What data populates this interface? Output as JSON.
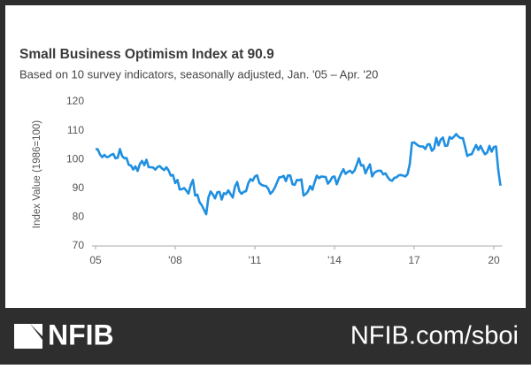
{
  "chart_data": {
    "type": "line",
    "title": "Small Business Optimism Index at 90.9",
    "subtitle": "Based on 10 survey indicators, seasonally adjusted, Jan. '05 – Apr. '20",
    "y_label": "Index Value (1986=100)",
    "color": "#1f8fe0",
    "x": [
      0,
      1,
      2,
      3,
      4,
      5,
      6,
      7,
      8,
      9,
      10,
      11,
      12,
      13,
      14,
      15,
      16,
      17,
      18,
      19,
      20,
      21,
      22,
      23,
      24,
      25,
      26,
      27,
      28,
      29,
      30,
      31,
      32,
      33,
      34,
      35,
      36,
      37,
      38,
      39,
      40,
      41,
      42,
      43,
      44,
      45,
      46,
      47,
      48,
      49,
      50,
      51,
      52,
      53,
      54,
      55,
      56,
      57,
      58,
      59,
      60,
      61,
      62,
      63,
      64,
      65,
      66,
      67,
      68,
      69,
      70,
      71,
      72,
      73,
      74,
      75,
      76,
      77,
      78,
      79,
      80,
      81,
      82,
      83,
      84,
      85,
      86,
      87,
      88,
      89,
      90,
      91,
      92,
      93,
      94,
      95,
      96,
      97,
      98,
      99,
      100,
      101,
      102,
      103,
      104,
      105,
      106,
      107,
      108,
      109,
      110,
      111,
      112,
      113,
      114,
      115,
      116,
      117,
      118,
      119,
      120,
      121,
      122,
      123,
      124,
      125,
      126,
      127,
      128,
      129,
      130,
      131,
      132,
      133,
      134,
      135,
      136,
      137,
      138,
      139,
      140,
      141,
      142,
      143,
      144,
      145,
      146,
      147,
      148,
      149,
      150,
      151,
      152,
      153,
      154,
      155,
      156,
      157,
      158,
      159,
      160,
      161,
      162,
      163,
      164,
      165,
      166,
      167,
      168,
      169,
      170,
      171,
      172,
      173,
      174,
      175,
      176,
      177,
      178,
      179,
      180,
      181,
      182,
      183
    ],
    "values": [
      103.6,
      103.5,
      101.7,
      100.8,
      101.6,
      100.8,
      101.0,
      101.6,
      101.9,
      100.4,
      100.6,
      103.6,
      101.2,
      100.4,
      100.5,
      98.1,
      97.9,
      96.5,
      97.6,
      96.0,
      98.4,
      99.5,
      98.0,
      99.9,
      97.3,
      97.3,
      97.2,
      96.5,
      97.4,
      97.7,
      96.9,
      96.3,
      97.3,
      96.2,
      94.4,
      94.6,
      91.8,
      92.9,
      89.6,
      89.7,
      90.1,
      89.2,
      88.2,
      91.1,
      92.9,
      87.5,
      87.8,
      85.2,
      84.1,
      82.6,
      81.0,
      86.8,
      88.9,
      87.9,
      86.5,
      88.6,
      88.8,
      86.1,
      88.3,
      88.0,
      89.3,
      88.0,
      86.8,
      90.6,
      92.2,
      89.0,
      88.1,
      88.8,
      89.0,
      91.7,
      93.2,
      92.6,
      94.1,
      94.5,
      91.9,
      91.2,
      90.9,
      90.8,
      89.9,
      88.1,
      88.9,
      90.2,
      92.0,
      93.8,
      93.9,
      94.3,
      92.5,
      94.5,
      94.4,
      91.4,
      91.2,
      92.9,
      92.8,
      93.1,
      87.5,
      88.0,
      88.9,
      90.8,
      89.5,
      92.1,
      94.4,
      93.5,
      94.1,
      94.0,
      93.9,
      91.6,
      92.5,
      93.9,
      94.1,
      91.4,
      93.4,
      95.2,
      96.6,
      95.0,
      95.7,
      96.1,
      95.3,
      96.1,
      98.1,
      100.4,
      97.9,
      98.0,
      95.2,
      96.9,
      98.3,
      94.1,
      95.4,
      95.9,
      96.1,
      96.1,
      94.8,
      95.2,
      93.9,
      92.9,
      92.6,
      93.6,
      93.8,
      94.5,
      94.6,
      94.4,
      94.1,
      94.9,
      98.4,
      105.8,
      105.9,
      105.3,
      104.7,
      104.5,
      104.5,
      103.6,
      105.2,
      105.3,
      103.0,
      103.8,
      107.5,
      104.9,
      106.9,
      107.6,
      104.7,
      104.8,
      107.8,
      107.2,
      107.9,
      108.8,
      107.9,
      107.4,
      107.4,
      104.4,
      101.2,
      101.7,
      101.8,
      103.5,
      105.0,
      103.3,
      104.7,
      103.1,
      101.8,
      102.4,
      104.7,
      102.7,
      104.3,
      104.5,
      96.4,
      90.9
    ],
    "xlim": [
      0,
      183
    ],
    "xticks": [
      {
        "value": 0,
        "label": "05"
      },
      {
        "value": 36,
        "label": "'08"
      },
      {
        "value": 72,
        "label": "'11"
      },
      {
        "value": 108,
        "label": "'14"
      },
      {
        "value": 144,
        "label": "17"
      },
      {
        "value": 180,
        "label": "20"
      }
    ],
    "ylim": [
      70,
      120
    ],
    "yticks": [
      70,
      80,
      90,
      100,
      110,
      120
    ],
    "grid": false
  },
  "footer": {
    "logo": "NFIB",
    "url": "NFIB.com/sboi"
  }
}
